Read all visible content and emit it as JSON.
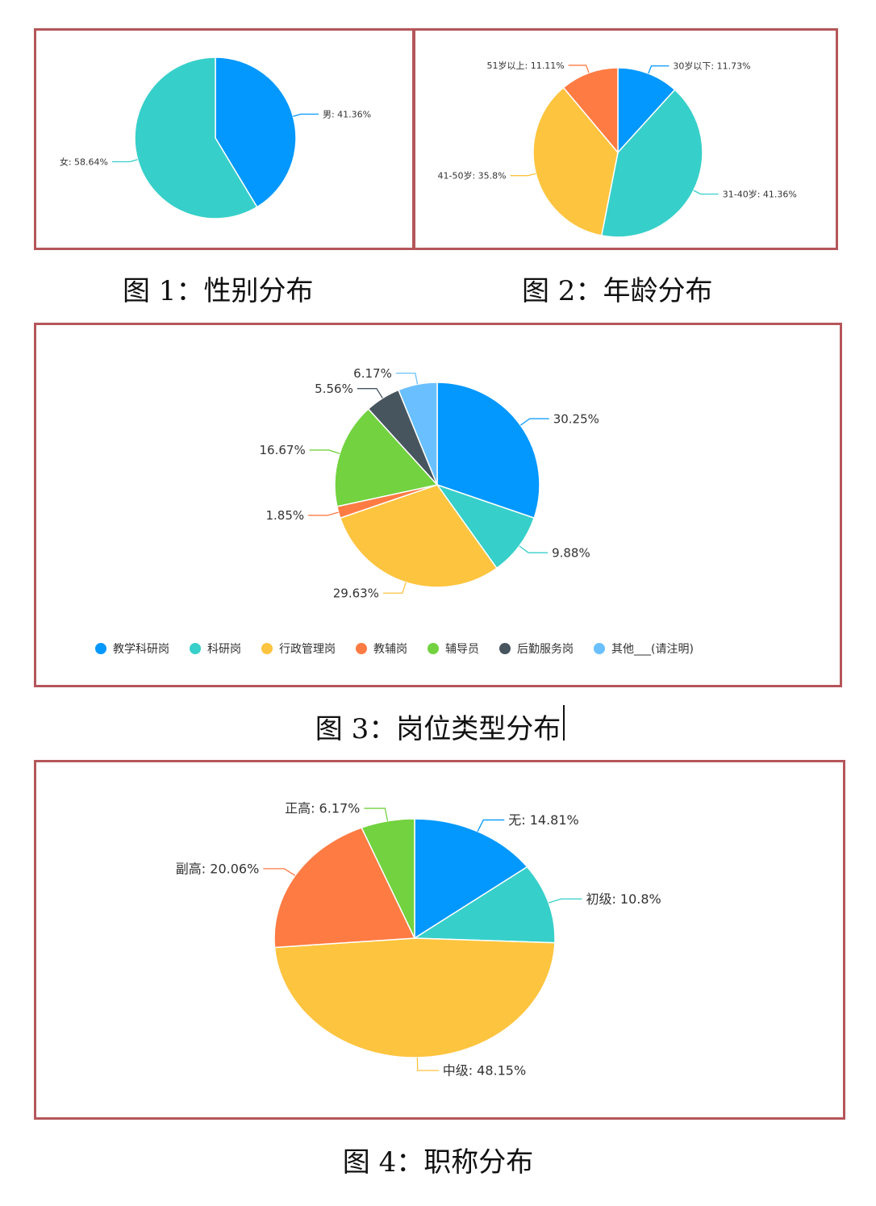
{
  "captions": {
    "fig1": "图 1：性别分布",
    "fig2": "图 2：年龄分布",
    "fig3": "图 3：岗位类型分布",
    "fig4": "图 4：职称分布"
  },
  "chart_data": [
    {
      "type": "pie",
      "id": "gender",
      "categories": [
        "男",
        "女"
      ],
      "values": [
        41.36,
        58.64
      ],
      "labels": [
        "男: 41.36%",
        "女: 58.64%"
      ],
      "colors": [
        "#0398fd",
        "#37cfc9"
      ]
    },
    {
      "type": "pie",
      "id": "age",
      "categories": [
        "30岁以下",
        "31-40岁",
        "41-50岁",
        "51岁以上"
      ],
      "values": [
        11.73,
        41.36,
        35.8,
        11.11
      ],
      "labels": [
        "30岁以下: 11.73%",
        "31-40岁: 41.36%",
        "41-50岁: 35.8%",
        "51岁以上: 11.11%"
      ],
      "colors": [
        "#0398fd",
        "#37cfc9",
        "#fdc43f",
        "#fe7b43"
      ]
    },
    {
      "type": "pie",
      "id": "position",
      "categories": [
        "教学科研岗",
        "科研岗",
        "行政管理岗",
        "教辅岗",
        "辅导员",
        "后勤服务岗",
        "其他___(请注明)"
      ],
      "values": [
        30.25,
        9.88,
        29.63,
        1.85,
        16.67,
        5.56,
        6.17
      ],
      "labels": [
        "30.25%",
        "9.88%",
        "29.63%",
        "1.85%",
        "16.67%",
        "5.56%",
        "6.17%"
      ],
      "colors": [
        "#0398fd",
        "#37cfc9",
        "#fdc43f",
        "#fe7b43",
        "#72d23f",
        "#47555f",
        "#6ac0fe"
      ],
      "legend": "bottom"
    },
    {
      "type": "pie",
      "id": "title",
      "categories": [
        "无",
        "初级",
        "中级",
        "副高",
        "正高"
      ],
      "values": [
        14.81,
        10.8,
        48.15,
        20.06,
        6.17
      ],
      "labels": [
        "无: 14.81%",
        "初级: 10.8%",
        "中级: 48.15%",
        "副高: 20.06%",
        "正高: 6.17%"
      ],
      "colors": [
        "#0398fd",
        "#37cfc9",
        "#fdc43f",
        "#fe7b43",
        "#72d23f"
      ]
    }
  ]
}
